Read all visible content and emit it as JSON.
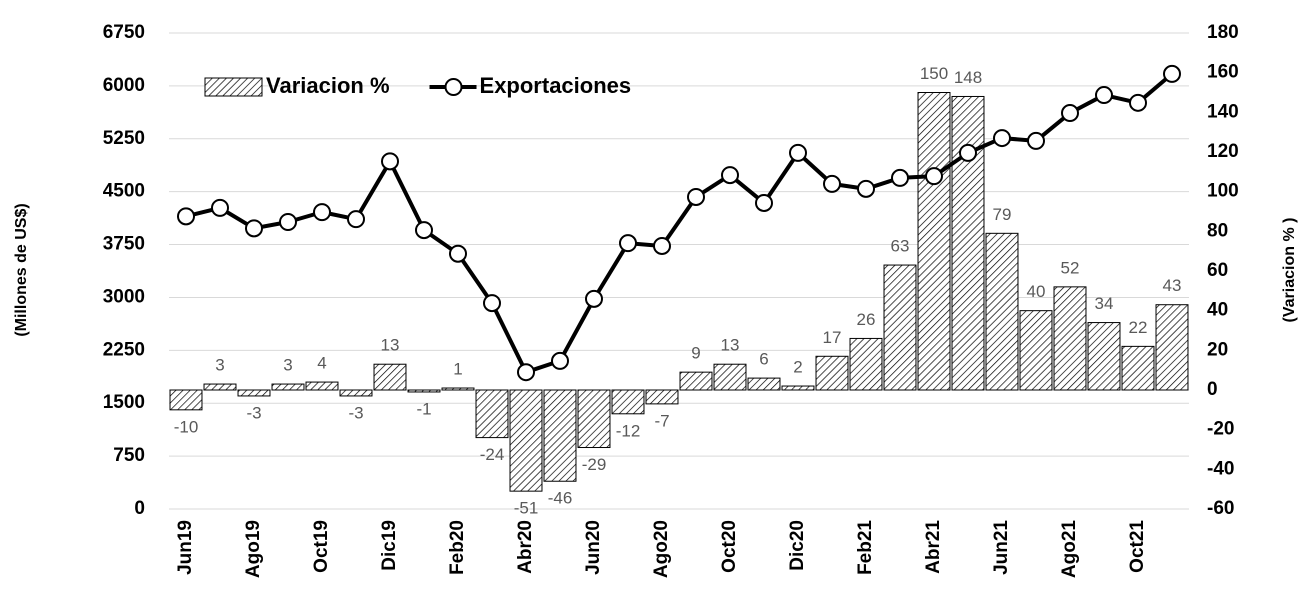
{
  "chart_data": {
    "type": "combo",
    "y_label": "(Millones de US$)",
    "y2_label": "(Variacion % )",
    "categories": [
      "Jun19",
      null,
      "Ago19",
      null,
      "Oct19",
      null,
      "Dic19",
      null,
      "Feb20",
      null,
      "Abr20",
      null,
      "Jun20",
      null,
      "Ago20",
      null,
      "Oct20",
      null,
      "Dic20",
      null,
      "Feb21",
      null,
      "Abr21",
      null,
      "Jun21",
      null,
      "Ago21",
      null,
      "Oct21",
      null
    ],
    "series": [
      {
        "name": "Variacion %",
        "type": "bar",
        "axis": "y2",
        "color": "#000000",
        "values": [
          -10,
          3,
          -3,
          3,
          4,
          -3,
          13,
          -1,
          1,
          -24,
          -51,
          -46,
          -29,
          -12,
          -7,
          9,
          13,
          6,
          2,
          17,
          26,
          63,
          150,
          148,
          79,
          40,
          52,
          34,
          22,
          43
        ]
      },
      {
        "name": "Exportaciones",
        "type": "line",
        "color": "#000000",
        "values": [
          4150,
          4270,
          3980,
          4070,
          4210,
          4110,
          4930,
          3955,
          3620,
          2920,
          1940,
          2100,
          2980,
          3770,
          3730,
          4425,
          4735,
          4340,
          5050,
          4610,
          4540,
          4695,
          4720,
          5050,
          5260,
          5220,
          5615,
          5870,
          5760,
          6170
        ]
      }
    ],
    "ylim": [
      0,
      6750
    ],
    "yticks": [
      0,
      750,
      1500,
      2250,
      3000,
      3750,
      4500,
      5250,
      6000,
      6750
    ],
    "y2lim": [
      -60,
      180
    ],
    "y2ticks": [
      -60,
      -40,
      -20,
      0,
      20,
      40,
      60,
      80,
      100,
      120,
      140,
      160,
      180
    ],
    "grid": true,
    "legend": "top-left"
  }
}
